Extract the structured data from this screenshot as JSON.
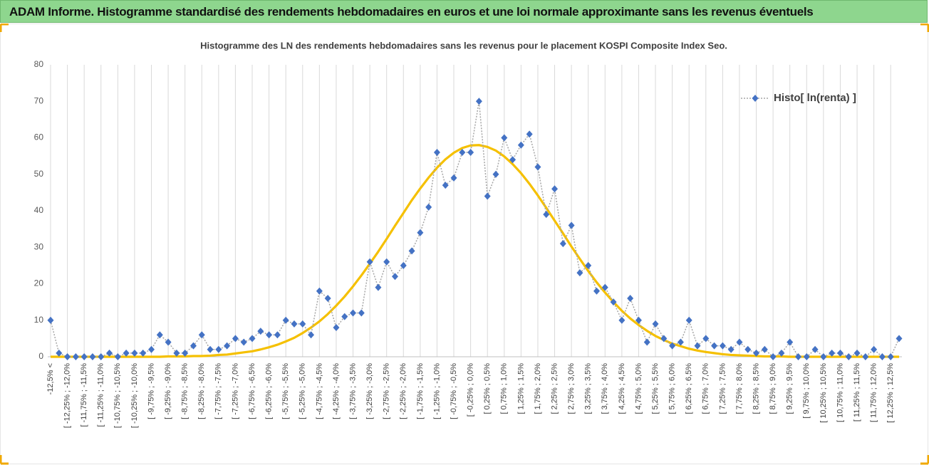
{
  "header": {
    "title": "ADAM Informe. Histogramme standardisé des rendements hebdomadaires en euros et une loi normale approximante sans les revenus éventuels"
  },
  "chart_data": {
    "type": "line",
    "title": "Histogramme  des LN des rendements  hebdomadaires sans les revenus pour le placement KOSPI Composite Index Seo.",
    "categories": [
      "-12,5% <",
      null,
      "[ -12,25% ; -12,0%",
      null,
      "[ -11,75% ; -11,5%",
      null,
      "[ -11,25% ; -11,0%",
      null,
      "[ -10,75% ; -10,5%",
      null,
      "[ -10,25% ; -10,0%",
      null,
      "[ -9,75% ; -9,5%",
      null,
      "[ -9,25% ; -9,0%",
      null,
      "[ -8,75% ; -8,5%",
      null,
      "[ -8,25% ; -8,0%",
      null,
      "[ -7,75% ; -7,5%",
      null,
      "[ -7,25% ; -7,0%",
      null,
      "[ -6,75% ; -6,5%",
      null,
      "[ -6,25% ; -6,0%",
      null,
      "[ -5,75% ; -5,5%",
      null,
      "[ -5,25% ; -5,0%",
      null,
      "[ -4,75% ; -4,5%",
      null,
      "[ -4,25% ; -4,0%",
      null,
      "[ -3,75% ; -3,5%",
      null,
      "[ -3,25% ; -3,0%",
      null,
      "[ -2,75% ; -2,5%",
      null,
      "[ -2,25% ; -2,0%",
      null,
      "[ -1,75% ; -1,5%",
      null,
      "[ -1,25% ; -1,0%",
      null,
      "[ -0,75% ; -0,5%",
      null,
      "[ -0,25% ; 0,0%",
      null,
      "[ 0,25% ; 0,5%",
      null,
      "[ 0,75% ; 1,0%",
      null,
      "[ 1,25% ; 1,5%",
      null,
      "[ 1,75% ; 2,0%",
      null,
      "[ 2,25% ; 2,5%",
      null,
      "[ 2,75% ; 3,0%",
      null,
      "[ 3,25% ; 3,5%",
      null,
      "[ 3,75% ; 4,0%",
      null,
      "[ 4,25% ; 4,5%",
      null,
      "[ 4,75% ; 5,0%",
      null,
      "[ 5,25% ; 5,5%",
      null,
      "[ 5,75% ; 6,0%",
      null,
      "[ 6,25% ; 6,5%",
      null,
      "[ 6,75% ; 7,0%",
      null,
      "[ 7,25% ; 7,5%",
      null,
      "[ 7,75% ; 8,0%",
      null,
      "[ 8,25% ; 8,5%",
      null,
      "[ 8,75% ; 9,0%",
      null,
      "[ 9,25% ; 9,5%",
      null,
      "[ 9,75% ; 10,0%",
      null,
      "[ 10,25% ; 10,5%",
      null,
      "[ 10,75% ; 11,0%",
      null,
      "[ 11,25% ; 11,5%",
      null,
      "[ 11,75% ; 12,0%",
      null,
      "[ 12,25% ; 12,5%",
      null
    ],
    "series": [
      {
        "name": "Histo[ ln(renta) ]",
        "color": "#4472c4",
        "line_color": "#a5a5a5",
        "marker": "diamond",
        "values": [
          10,
          1,
          0,
          0,
          0,
          0,
          0,
          1,
          0,
          1,
          1,
          1,
          2,
          6,
          4,
          1,
          1,
          3,
          6,
          2,
          2,
          3,
          5,
          4,
          5,
          7,
          6,
          6,
          10,
          9,
          9,
          6,
          18,
          16,
          8,
          11,
          12,
          12,
          26,
          19,
          26,
          22,
          25,
          29,
          34,
          41,
          56,
          47,
          49,
          56,
          56,
          70,
          44,
          50,
          60,
          54,
          58,
          61,
          52,
          39,
          46,
          31,
          36,
          23,
          25,
          18,
          19,
          15,
          10,
          16,
          10,
          4,
          9,
          5,
          3,
          4,
          10,
          3,
          5,
          3,
          3,
          2,
          4,
          2,
          1,
          2,
          0,
          1,
          4,
          0,
          0,
          2,
          0,
          1,
          1,
          0,
          1,
          0,
          2,
          0,
          0,
          5
        ]
      },
      {
        "color": "#f5c000",
        "values": [
          0,
          0,
          0,
          0,
          0,
          0,
          0,
          0,
          0,
          0,
          0,
          0,
          0,
          0,
          0.1,
          0.1,
          0.1,
          0.2,
          0.2,
          0.3,
          0.5,
          0.6,
          0.9,
          1.2,
          1.5,
          2.0,
          2.6,
          3.3,
          4.2,
          5.2,
          6.5,
          8.0,
          9.7,
          11.7,
          14.0,
          16.5,
          19.3,
          22.3,
          25.5,
          28.8,
          32.3,
          35.9,
          39.4,
          42.9,
          46.1,
          49.1,
          51.8,
          54.1,
          55.9,
          57.2,
          57.9,
          58.0,
          57.5,
          56.5,
          54.9,
          52.8,
          50.3,
          47.4,
          44.2,
          40.8,
          37.3,
          33.8,
          30.2,
          26.8,
          23.5,
          20.4,
          17.6,
          15.0,
          12.6,
          10.5,
          8.7,
          7.1,
          5.7,
          4.6,
          3.6,
          2.9,
          2.2,
          1.7,
          1.3,
          1.0,
          0.7,
          0.5,
          0.4,
          0.3,
          0.2,
          0.1,
          0.1,
          0.1,
          0,
          0,
          0,
          0,
          0,
          0,
          0,
          0,
          0,
          0,
          0,
          0,
          0,
          0
        ]
      }
    ],
    "ylim": [
      0,
      80
    ],
    "yticks": [
      0,
      10,
      20,
      30,
      40,
      50,
      60,
      70,
      80
    ],
    "grid": "x",
    "legend": "upper right"
  }
}
